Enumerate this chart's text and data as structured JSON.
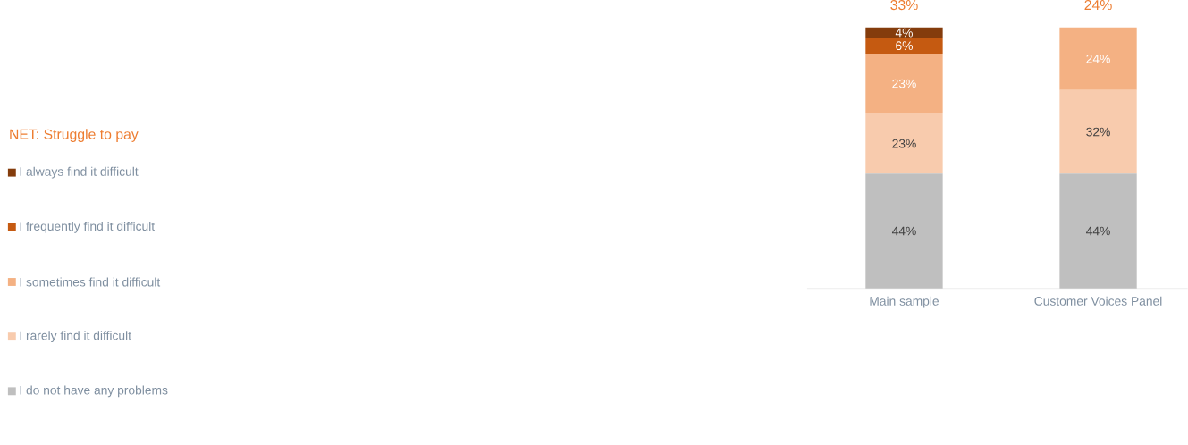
{
  "chart_data": {
    "type": "bar",
    "stacked": true,
    "categories": [
      "Main sample",
      "Customer Voices Panel"
    ],
    "series": [
      {
        "name": "I do not have any problems",
        "color": "#bfbfbf",
        "values": [
          44,
          44
        ],
        "value_labels": [
          "44%",
          "44%"
        ]
      },
      {
        "name": "I rarely find it difficult",
        "color": "#f8cbad",
        "values": [
          23,
          32
        ],
        "value_labels": [
          "23%",
          "32%"
        ]
      },
      {
        "name": "I sometimes find it difficult",
        "color": "#f4b183",
        "values": [
          23,
          24
        ],
        "value_labels": [
          "23%",
          "24%"
        ]
      },
      {
        "name": "I frequently find it difficult",
        "color": "#c55a11",
        "values": [
          6,
          null
        ],
        "value_labels": [
          "6%",
          null
        ]
      },
      {
        "name": "I always find it difficult",
        "color": "#843c0c",
        "values": [
          4,
          null
        ],
        "value_labels": [
          "4%",
          null
        ]
      }
    ],
    "annotations": [
      "NET: Struggle to pay",
      "33%",
      "24%"
    ],
    "legend": "left"
  }
}
